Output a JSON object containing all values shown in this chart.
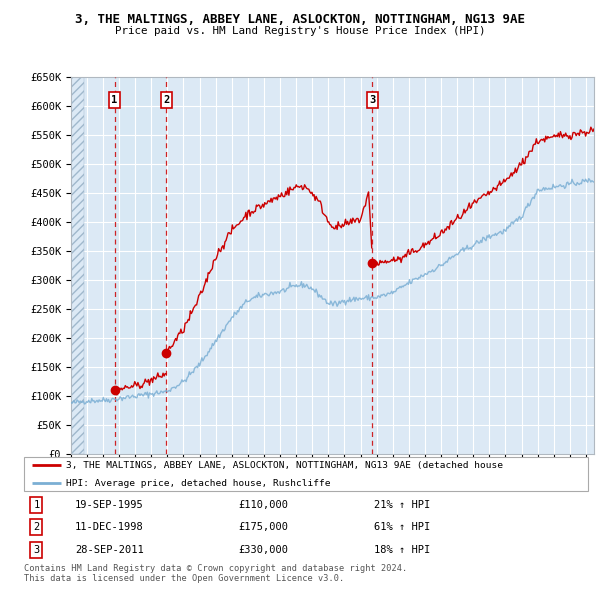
{
  "title": "3, THE MALTINGS, ABBEY LANE, ASLOCKTON, NOTTINGHAM, NG13 9AE",
  "subtitle": "Price paid vs. HM Land Registry's House Price Index (HPI)",
  "ylim": [
    0,
    650000
  ],
  "yticks": [
    0,
    50000,
    100000,
    150000,
    200000,
    250000,
    300000,
    350000,
    400000,
    450000,
    500000,
    550000,
    600000,
    650000
  ],
  "ytick_labels": [
    "£0",
    "£50K",
    "£100K",
    "£150K",
    "£200K",
    "£250K",
    "£300K",
    "£350K",
    "£400K",
    "£450K",
    "£500K",
    "£550K",
    "£600K",
    "£650K"
  ],
  "xlim_start": 1993.0,
  "xlim_end": 2025.5,
  "bg_color": "#dce9f5",
  "hatch_facecolor": "#c8d8ea",
  "highlight_color": "#d8e8f4",
  "grid_color": "#ffffff",
  "purchases": [
    {
      "label": "1",
      "year_dec": 1995.72,
      "price": 110000
    },
    {
      "label": "2",
      "year_dec": 1998.94,
      "price": 175000
    },
    {
      "label": "3",
      "year_dec": 2011.74,
      "price": 330000
    }
  ],
  "legend_line1": "3, THE MALTINGS, ABBEY LANE, ASLOCKTON, NOTTINGHAM, NG13 9AE (detached house",
  "legend_line2": "HPI: Average price, detached house, Rushcliffe",
  "table_rows": [
    {
      "num": "1",
      "date": "19-SEP-1995",
      "price": "£110,000",
      "change": "21% ↑ HPI"
    },
    {
      "num": "2",
      "date": "11-DEC-1998",
      "price": "£175,000",
      "change": "61% ↑ HPI"
    },
    {
      "num": "3",
      "date": "28-SEP-2011",
      "price": "£330,000",
      "change": "18% ↑ HPI"
    }
  ],
  "footer": "Contains HM Land Registry data © Crown copyright and database right 2024.\nThis data is licensed under the Open Government Licence v3.0.",
  "red_color": "#cc0000",
  "blue_color": "#7bafd4"
}
